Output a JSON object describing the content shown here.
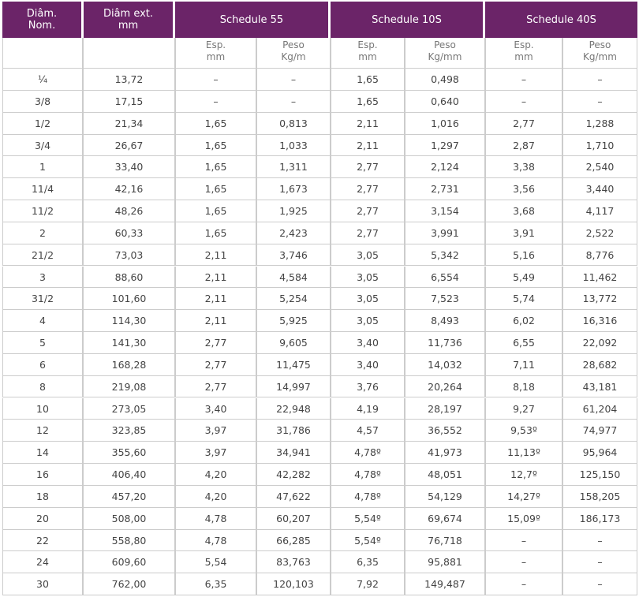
{
  "header": {
    "columns": [
      [
        "Diâm.",
        "Nom."
      ],
      [
        "Diâm ext.",
        "mm"
      ]
    ],
    "groups": [
      "Schedule 55",
      "Schedule 10S",
      "Schedule 40S"
    ],
    "subheaders": [
      [
        "Esp.",
        "mm"
      ],
      [
        "Peso",
        "Kg/m"
      ],
      [
        "Esp.",
        "mm"
      ],
      [
        "Peso",
        "Kg/mm"
      ],
      [
        "Esp.",
        "mm"
      ],
      [
        "Peso",
        "Kg/mm"
      ]
    ]
  },
  "table": {
    "rows": [
      [
        "¼",
        "13,72",
        "–",
        "–",
        "1,65",
        "0,498",
        "–",
        "–"
      ],
      [
        "3/8",
        "17,15",
        "–",
        "–",
        "1,65",
        "0,640",
        "–",
        "–"
      ],
      [
        "1/2",
        "21,34",
        "1,65",
        "0,813",
        "2,11",
        "1,016",
        "2,77",
        "1,288"
      ],
      [
        "3/4",
        "26,67",
        "1,65",
        "1,033",
        "2,11",
        "1,297",
        "2,87",
        "1,710"
      ],
      [
        "1",
        "33,40",
        "1,65",
        "1,311",
        "2,77",
        "2,124",
        "3,38",
        "2,540"
      ],
      [
        "11/4",
        "42,16",
        "1,65",
        "1,673",
        "2,77",
        "2,731",
        "3,56",
        "3,440"
      ],
      [
        "11/2",
        "48,26",
        "1,65",
        "1,925",
        "2,77",
        "3,154",
        "3,68",
        "4,117"
      ],
      [
        "2",
        "60,33",
        "1,65",
        "2,423",
        "2,77",
        "3,991",
        "3,91",
        "2,522"
      ],
      [
        "21/2",
        "73,03",
        "2,11",
        "3,746",
        "3,05",
        "5,342",
        "5,16",
        "8,776"
      ],
      [
        "3",
        "88,60",
        "2,11",
        "4,584",
        "3,05",
        "6,554",
        "5,49",
        "11,462"
      ],
      [
        "31/2",
        "101,60",
        "2,11",
        "5,254",
        "3,05",
        "7,523",
        "5,74",
        "13,772"
      ],
      [
        "4",
        "114,30",
        "2,11",
        "5,925",
        "3,05",
        "8,493",
        "6,02",
        "16,316"
      ],
      [
        "5",
        "141,30",
        "2,77",
        "9,605",
        "3,40",
        "11,736",
        "6,55",
        "22,092"
      ],
      [
        "6",
        "168,28",
        "2,77",
        "11,475",
        "3,40",
        "14,032",
        "7,11",
        "28,682"
      ],
      [
        "8",
        "219,08",
        "2,77",
        "14,997",
        "3,76",
        "20,264",
        "8,18",
        "43,181"
      ],
      [
        "10",
        "273,05",
        "3,40",
        "22,948",
        "4,19",
        "28,197",
        "9,27",
        "61,204"
      ],
      [
        "12",
        "323,85",
        "3,97",
        "31,786",
        "4,57",
        "36,552",
        "9,53º",
        "74,977"
      ],
      [
        "14",
        "355,60",
        "3,97",
        "34,941",
        "4,78º",
        "41,973",
        "11,13º",
        "95,964"
      ],
      [
        "16",
        "406,40",
        "4,20",
        "42,282",
        "4,78º",
        "48,051",
        "12,7º",
        "125,150"
      ],
      [
        "18",
        "457,20",
        "4,20",
        "47,622",
        "4,78º",
        "54,129",
        "14,27º",
        "158,205"
      ],
      [
        "20",
        "508,00",
        "4,78",
        "60,207",
        "5,54º",
        "69,674",
        "15,09º",
        "186,173"
      ],
      [
        "22",
        "558,80",
        "4,78",
        "66,285",
        "5,54º",
        "76,718",
        "–",
        "–"
      ],
      [
        "24",
        "609,60",
        "5,54",
        "83,763",
        "6,35",
        "95,881",
        "–",
        "–"
      ],
      [
        "30",
        "762,00",
        "6,35",
        "120,103",
        "7,92",
        "149,487",
        "–",
        "–"
      ]
    ]
  }
}
